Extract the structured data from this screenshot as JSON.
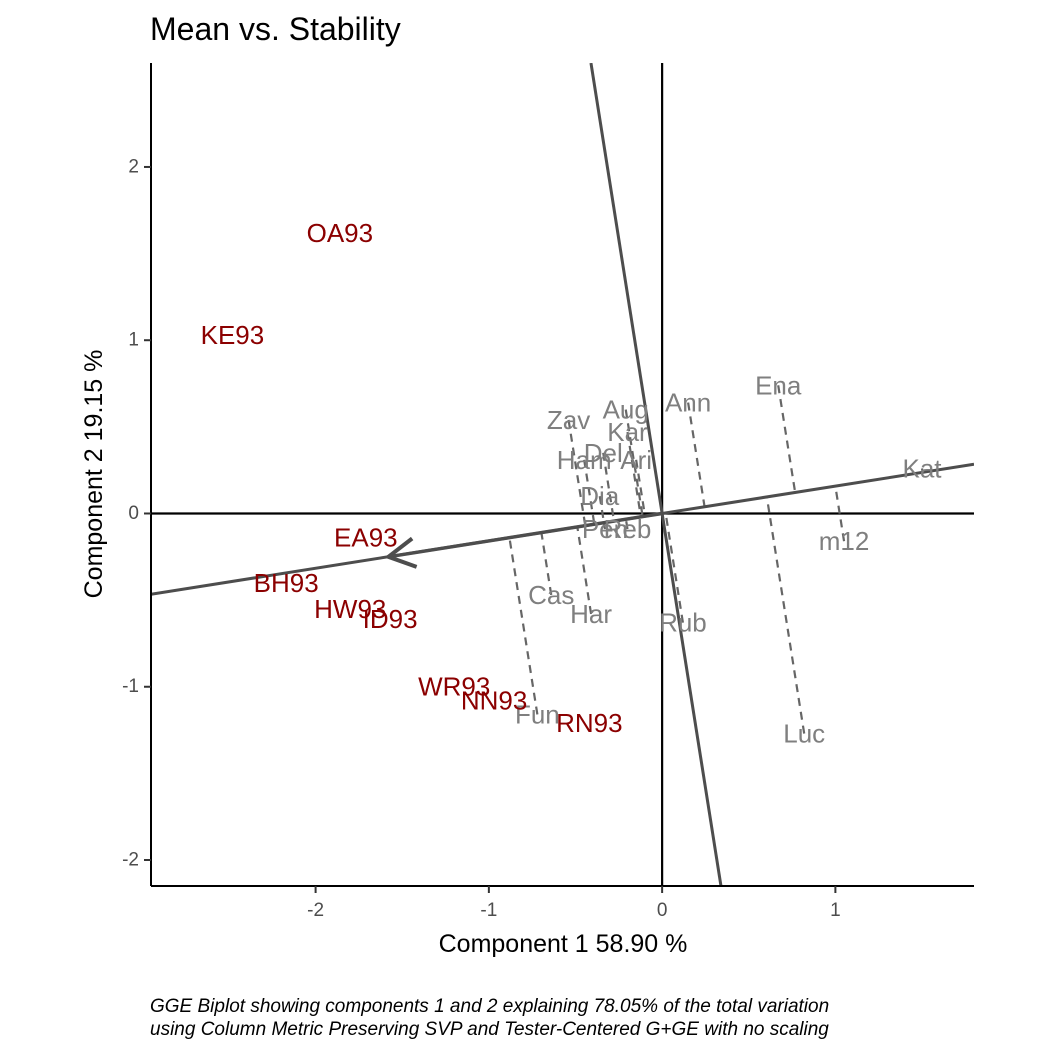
{
  "chart_data": {
    "type": "scatter",
    "title": "Mean vs. Stability",
    "xlabel": "Component 1 58.90 %",
    "ylabel": "Component 2 19.15 %",
    "xlim": [
      -2.95,
      1.8
    ],
    "ylim": [
      -2.15,
      2.6
    ],
    "x_ticks": [
      -2,
      -1,
      0,
      1
    ],
    "y_ticks": [
      -2,
      -1,
      0,
      1,
      2
    ],
    "x_tick_labels": [
      "-2",
      "-1",
      "0",
      "1"
    ],
    "y_tick_labels": [
      "-2",
      "-1",
      "0",
      "1",
      "2"
    ],
    "caption": [
      "GGE Biplot showing components 1 and 2 explaining 78.05% of the total variation",
      "using Column Metric Preserving SVP and Tester-Centered G+GE with no scaling"
    ],
    "colors": {
      "genotype": "#7f7f7f",
      "environment": "#8b0000",
      "axis_line": "#4d4d4d",
      "projection": "#666666"
    },
    "aec_arrow": {
      "from": [
        0,
        0
      ],
      "to": [
        -1.58,
        -0.25
      ]
    },
    "aec_abscissa_slope": 0.158,
    "aec_ordinate_slope": -6.33,
    "genotypes": [
      {
        "name": "Zav",
        "x": -0.54,
        "y": 0.54
      },
      {
        "name": "Aug",
        "x": -0.21,
        "y": 0.6
      },
      {
        "name": "Ann",
        "x": 0.15,
        "y": 0.64
      },
      {
        "name": "Ena",
        "x": 0.67,
        "y": 0.74
      },
      {
        "name": "Kar",
        "x": -0.2,
        "y": 0.47
      },
      {
        "name": "Del",
        "x": -0.34,
        "y": 0.35
      },
      {
        "name": "Ari",
        "x": -0.15,
        "y": 0.31
      },
      {
        "name": "Ham",
        "x": -0.45,
        "y": 0.31
      },
      {
        "name": "Dia",
        "x": -0.36,
        "y": 0.1
      },
      {
        "name": "Kat",
        "x": 1.5,
        "y": 0.26
      },
      {
        "name": "m12",
        "x": 1.05,
        "y": -0.16
      },
      {
        "name": "Reb",
        "x": -0.2,
        "y": -0.09
      },
      {
        "name": "Pen",
        "x": -0.33,
        "y": -0.09
      },
      {
        "name": "Cas",
        "x": -0.64,
        "y": -0.47
      },
      {
        "name": "Har",
        "x": -0.41,
        "y": -0.58
      },
      {
        "name": "Rub",
        "x": 0.12,
        "y": -0.63
      },
      {
        "name": "Fun",
        "x": -0.72,
        "y": -1.16
      },
      {
        "name": "Luc",
        "x": 0.82,
        "y": -1.27
      }
    ],
    "environments": [
      {
        "name": "OA93",
        "x": -1.86,
        "y": 1.62
      },
      {
        "name": "KE93",
        "x": -2.48,
        "y": 1.03
      },
      {
        "name": "EA93",
        "x": -1.71,
        "y": -0.14
      },
      {
        "name": "BH93",
        "x": -2.17,
        "y": -0.4
      },
      {
        "name": "HW93",
        "x": -1.8,
        "y": -0.55
      },
      {
        "name": "ID93",
        "x": -1.57,
        "y": -0.61
      },
      {
        "name": "WR93",
        "x": -1.2,
        "y": -1.0
      },
      {
        "name": "NN93",
        "x": -0.97,
        "y": -1.08
      },
      {
        "name": "RN93",
        "x": -0.42,
        "y": -1.21
      }
    ]
  }
}
